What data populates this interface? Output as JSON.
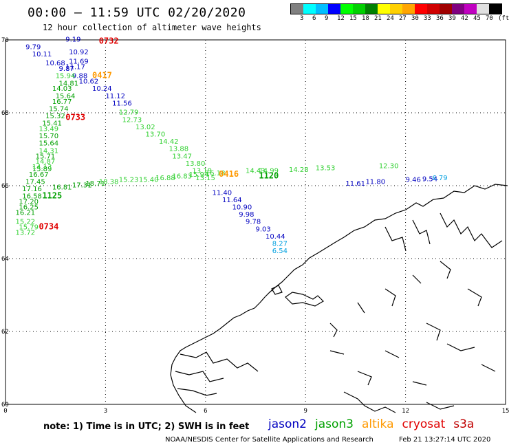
{
  "header": {
    "title": "00:00 – 11:59 UTC 02/20/2020",
    "subtitle": "12 hour collection of altimeter wave heights"
  },
  "colorbar": {
    "colors": [
      "#808080",
      "#00ffff",
      "#00bfff",
      "#0000ff",
      "#00ff00",
      "#00d000",
      "#008000",
      "#ffff00",
      "#ffd000",
      "#ffa500",
      "#ff0000",
      "#d00000",
      "#a00000",
      "#800080",
      "#c000c0",
      "#e0e0e0",
      "#000000"
    ],
    "labels": [
      "3",
      "6",
      "9",
      "12",
      "15",
      "18",
      "21",
      "24",
      "27",
      "30",
      "33",
      "36",
      "39",
      "42",
      "45",
      "70",
      "(ft)"
    ]
  },
  "axes": {
    "x_ticks": [
      "0",
      "3",
      "6",
      "9",
      "12",
      "15"
    ],
    "y_ticks": [
      "70",
      "68",
      "66",
      "64",
      "62",
      "60"
    ],
    "lon_range": [
      0,
      15
    ],
    "lat_range": [
      60,
      70
    ]
  },
  "tracks": [
    {
      "satellite": "jason2",
      "color": "#0000c0",
      "points": [
        {
          "lon": 1.8,
          "lat": 69.95,
          "v": "9.19"
        },
        {
          "lon": 0.6,
          "lat": 69.75,
          "v": "9.79"
        },
        {
          "lon": 1.9,
          "lat": 69.6,
          "v": "10.92"
        },
        {
          "lon": 0.8,
          "lat": 69.55,
          "v": "10.11"
        },
        {
          "lon": 1.9,
          "lat": 69.35,
          "v": "11.69"
        },
        {
          "lon": 1.2,
          "lat": 69.3,
          "v": "10.68"
        },
        {
          "lon": 1.8,
          "lat": 69.2,
          "v": "11.17"
        },
        {
          "lon": 1.6,
          "lat": 69.15,
          "v": "9.87"
        },
        {
          "lon": 2.0,
          "lat": 68.95,
          "v": "9.88"
        },
        {
          "lon": 2.2,
          "lat": 68.8,
          "v": "10.62"
        },
        {
          "lon": 2.6,
          "lat": 68.6,
          "v": "10.24"
        },
        {
          "lon": 3.0,
          "lat": 68.4,
          "v": "11.12"
        },
        {
          "lon": 3.2,
          "lat": 68.2,
          "v": "11.56"
        },
        {
          "lon": 6.2,
          "lat": 65.75,
          "v": "11.40"
        },
        {
          "lon": 6.5,
          "lat": 65.55,
          "v": "11.64"
        },
        {
          "lon": 6.8,
          "lat": 65.35,
          "v": "10.90"
        },
        {
          "lon": 7.0,
          "lat": 65.15,
          "v": "9.98"
        },
        {
          "lon": 7.2,
          "lat": 64.95,
          "v": "9.78"
        },
        {
          "lon": 7.5,
          "lat": 64.75,
          "v": "9.03"
        },
        {
          "lon": 7.8,
          "lat": 64.55,
          "v": "10.44"
        },
        {
          "lon": 10.2,
          "lat": 66.0,
          "v": "11.61"
        },
        {
          "lon": 10.8,
          "lat": 66.05,
          "v": "11.80"
        },
        {
          "lon": 12.0,
          "lat": 66.1,
          "v": "9.46"
        },
        {
          "lon": 12.5,
          "lat": 66.12,
          "v": "9.54"
        }
      ]
    },
    {
      "satellite": "jason3",
      "color": "#00a000",
      "points": [
        {
          "lon": 1.6,
          "lat": 68.75,
          "v": "14.81"
        },
        {
          "lon": 1.4,
          "lat": 68.6,
          "v": "14.03"
        },
        {
          "lon": 1.5,
          "lat": 68.4,
          "v": "15.64"
        },
        {
          "lon": 1.4,
          "lat": 68.25,
          "v": "16.77"
        },
        {
          "lon": 1.3,
          "lat": 68.05,
          "v": "15.74"
        },
        {
          "lon": 1.2,
          "lat": 67.85,
          "v": "15.32"
        },
        {
          "lon": 1.1,
          "lat": 67.65,
          "v": "15.41"
        },
        {
          "lon": 1.0,
          "lat": 67.3,
          "v": "15.70"
        },
        {
          "lon": 1.0,
          "lat": 67.1,
          "v": "15.64"
        },
        {
          "lon": 0.9,
          "lat": 66.75,
          "v": "15.71"
        },
        {
          "lon": 0.8,
          "lat": 66.4,
          "v": "15.89"
        },
        {
          "lon": 0.7,
          "lat": 66.25,
          "v": "16.67"
        },
        {
          "lon": 0.6,
          "lat": 66.05,
          "v": "17.45"
        },
        {
          "lon": 0.5,
          "lat": 65.65,
          "v": "16.58"
        },
        {
          "lon": 0.4,
          "lat": 65.5,
          "v": "17.20"
        },
        {
          "lon": 0.4,
          "lat": 65.35,
          "v": "16.25"
        },
        {
          "lon": 0.3,
          "lat": 65.2,
          "v": "16.21"
        },
        {
          "lon": 0.5,
          "lat": 65.85,
          "v": "17.16"
        },
        {
          "lon": 1.4,
          "lat": 65.9,
          "v": "16.81"
        },
        {
          "lon": 2.0,
          "lat": 65.95,
          "v": "17.31"
        },
        {
          "lon": 2.4,
          "lat": 66.0,
          "v": "18.71"
        }
      ]
    },
    {
      "satellite": "jason3-light",
      "color": "#30d030",
      "points": [
        {
          "lon": 1.5,
          "lat": 68.95,
          "v": "15.94"
        },
        {
          "lon": 1.0,
          "lat": 67.5,
          "v": "13.49"
        },
        {
          "lon": 1.0,
          "lat": 66.9,
          "v": "14.31"
        },
        {
          "lon": 0.9,
          "lat": 66.6,
          "v": "14.87"
        },
        {
          "lon": 0.8,
          "lat": 66.45,
          "v": "14.13"
        },
        {
          "lon": 0.3,
          "lat": 64.95,
          "v": "15.22"
        },
        {
          "lon": 0.4,
          "lat": 64.8,
          "v": "15.79"
        },
        {
          "lon": 0.3,
          "lat": 64.65,
          "v": "13.72"
        },
        {
          "lon": 3.4,
          "lat": 67.95,
          "v": "12.79"
        },
        {
          "lon": 3.5,
          "lat": 67.75,
          "v": "12.73"
        },
        {
          "lon": 3.9,
          "lat": 67.55,
          "v": "13.02"
        },
        {
          "lon": 4.2,
          "lat": 67.35,
          "v": "13.70"
        },
        {
          "lon": 4.6,
          "lat": 67.15,
          "v": "14.42"
        },
        {
          "lon": 4.9,
          "lat": 66.95,
          "v": "13.88"
        },
        {
          "lon": 5.0,
          "lat": 66.75,
          "v": "13.47"
        },
        {
          "lon": 5.4,
          "lat": 66.55,
          "v": "13.80"
        },
        {
          "lon": 5.6,
          "lat": 66.35,
          "v": "13.19"
        },
        {
          "lon": 5.7,
          "lat": 66.15,
          "v": "13.15"
        },
        {
          "lon": 2.8,
          "lat": 66.05,
          "v": "18.38"
        },
        {
          "lon": 3.4,
          "lat": 66.1,
          "v": "15.23"
        },
        {
          "lon": 4.0,
          "lat": 66.1,
          "v": "15.40"
        },
        {
          "lon": 4.5,
          "lat": 66.15,
          "v": "16.88"
        },
        {
          "lon": 5.0,
          "lat": 66.2,
          "v": "16.83"
        },
        {
          "lon": 5.5,
          "lat": 66.25,
          "v": "15.94"
        },
        {
          "lon": 6.0,
          "lat": 66.28,
          "v": "16.18"
        },
        {
          "lon": 7.2,
          "lat": 66.35,
          "v": "14.43"
        },
        {
          "lon": 7.6,
          "lat": 66.35,
          "v": "14.99"
        },
        {
          "lon": 8.5,
          "lat": 66.38,
          "v": "14.28"
        },
        {
          "lon": 9.3,
          "lat": 66.42,
          "v": "13.53"
        },
        {
          "lon": 11.2,
          "lat": 66.48,
          "v": "12.30"
        }
      ]
    },
    {
      "satellite": "cryosat-light",
      "color": "#00a0e0",
      "points": [
        {
          "lon": 8.0,
          "lat": 64.35,
          "v": "8.27"
        },
        {
          "lon": 8.0,
          "lat": 64.15,
          "v": "6.54"
        },
        {
          "lon": 12.8,
          "lat": 66.15,
          "v": "6.79"
        }
      ]
    }
  ],
  "time_markers": [
    {
      "lon": 2.8,
      "lat": 69.9,
      "label": "0732",
      "color": "#e00000"
    },
    {
      "lon": 2.6,
      "lat": 68.95,
      "label": "0417",
      "color": "#ff9900"
    },
    {
      "lon": 1.8,
      "lat": 67.8,
      "label": "0733",
      "color": "#e00000"
    },
    {
      "lon": 6.4,
      "lat": 66.25,
      "label": "0416",
      "color": "#ff9900"
    },
    {
      "lon": 7.6,
      "lat": 66.2,
      "label": "1120",
      "color": "#00a000"
    },
    {
      "lon": 1.1,
      "lat": 65.65,
      "label": "1125",
      "color": "#00a000"
    },
    {
      "lon": 1.0,
      "lat": 64.8,
      "label": "0734",
      "color": "#e00000"
    }
  ],
  "footer": {
    "note": "note: 1) Time is in UTC; 2) SWH is in feet",
    "legend": [
      {
        "name": "jason2",
        "color": "#0000c0"
      },
      {
        "name": "jason3",
        "color": "#00a000"
      },
      {
        "name": "altika",
        "color": "#ff9900"
      },
      {
        "name": "cryosat",
        "color": "#e00000"
      },
      {
        "name": "s3a",
        "color": "#c00000"
      }
    ],
    "credit": "NOAA/NESDIS Center for Satellite Applications and Research",
    "stamp": "Feb 21 13:27:14 UTC 2020"
  }
}
